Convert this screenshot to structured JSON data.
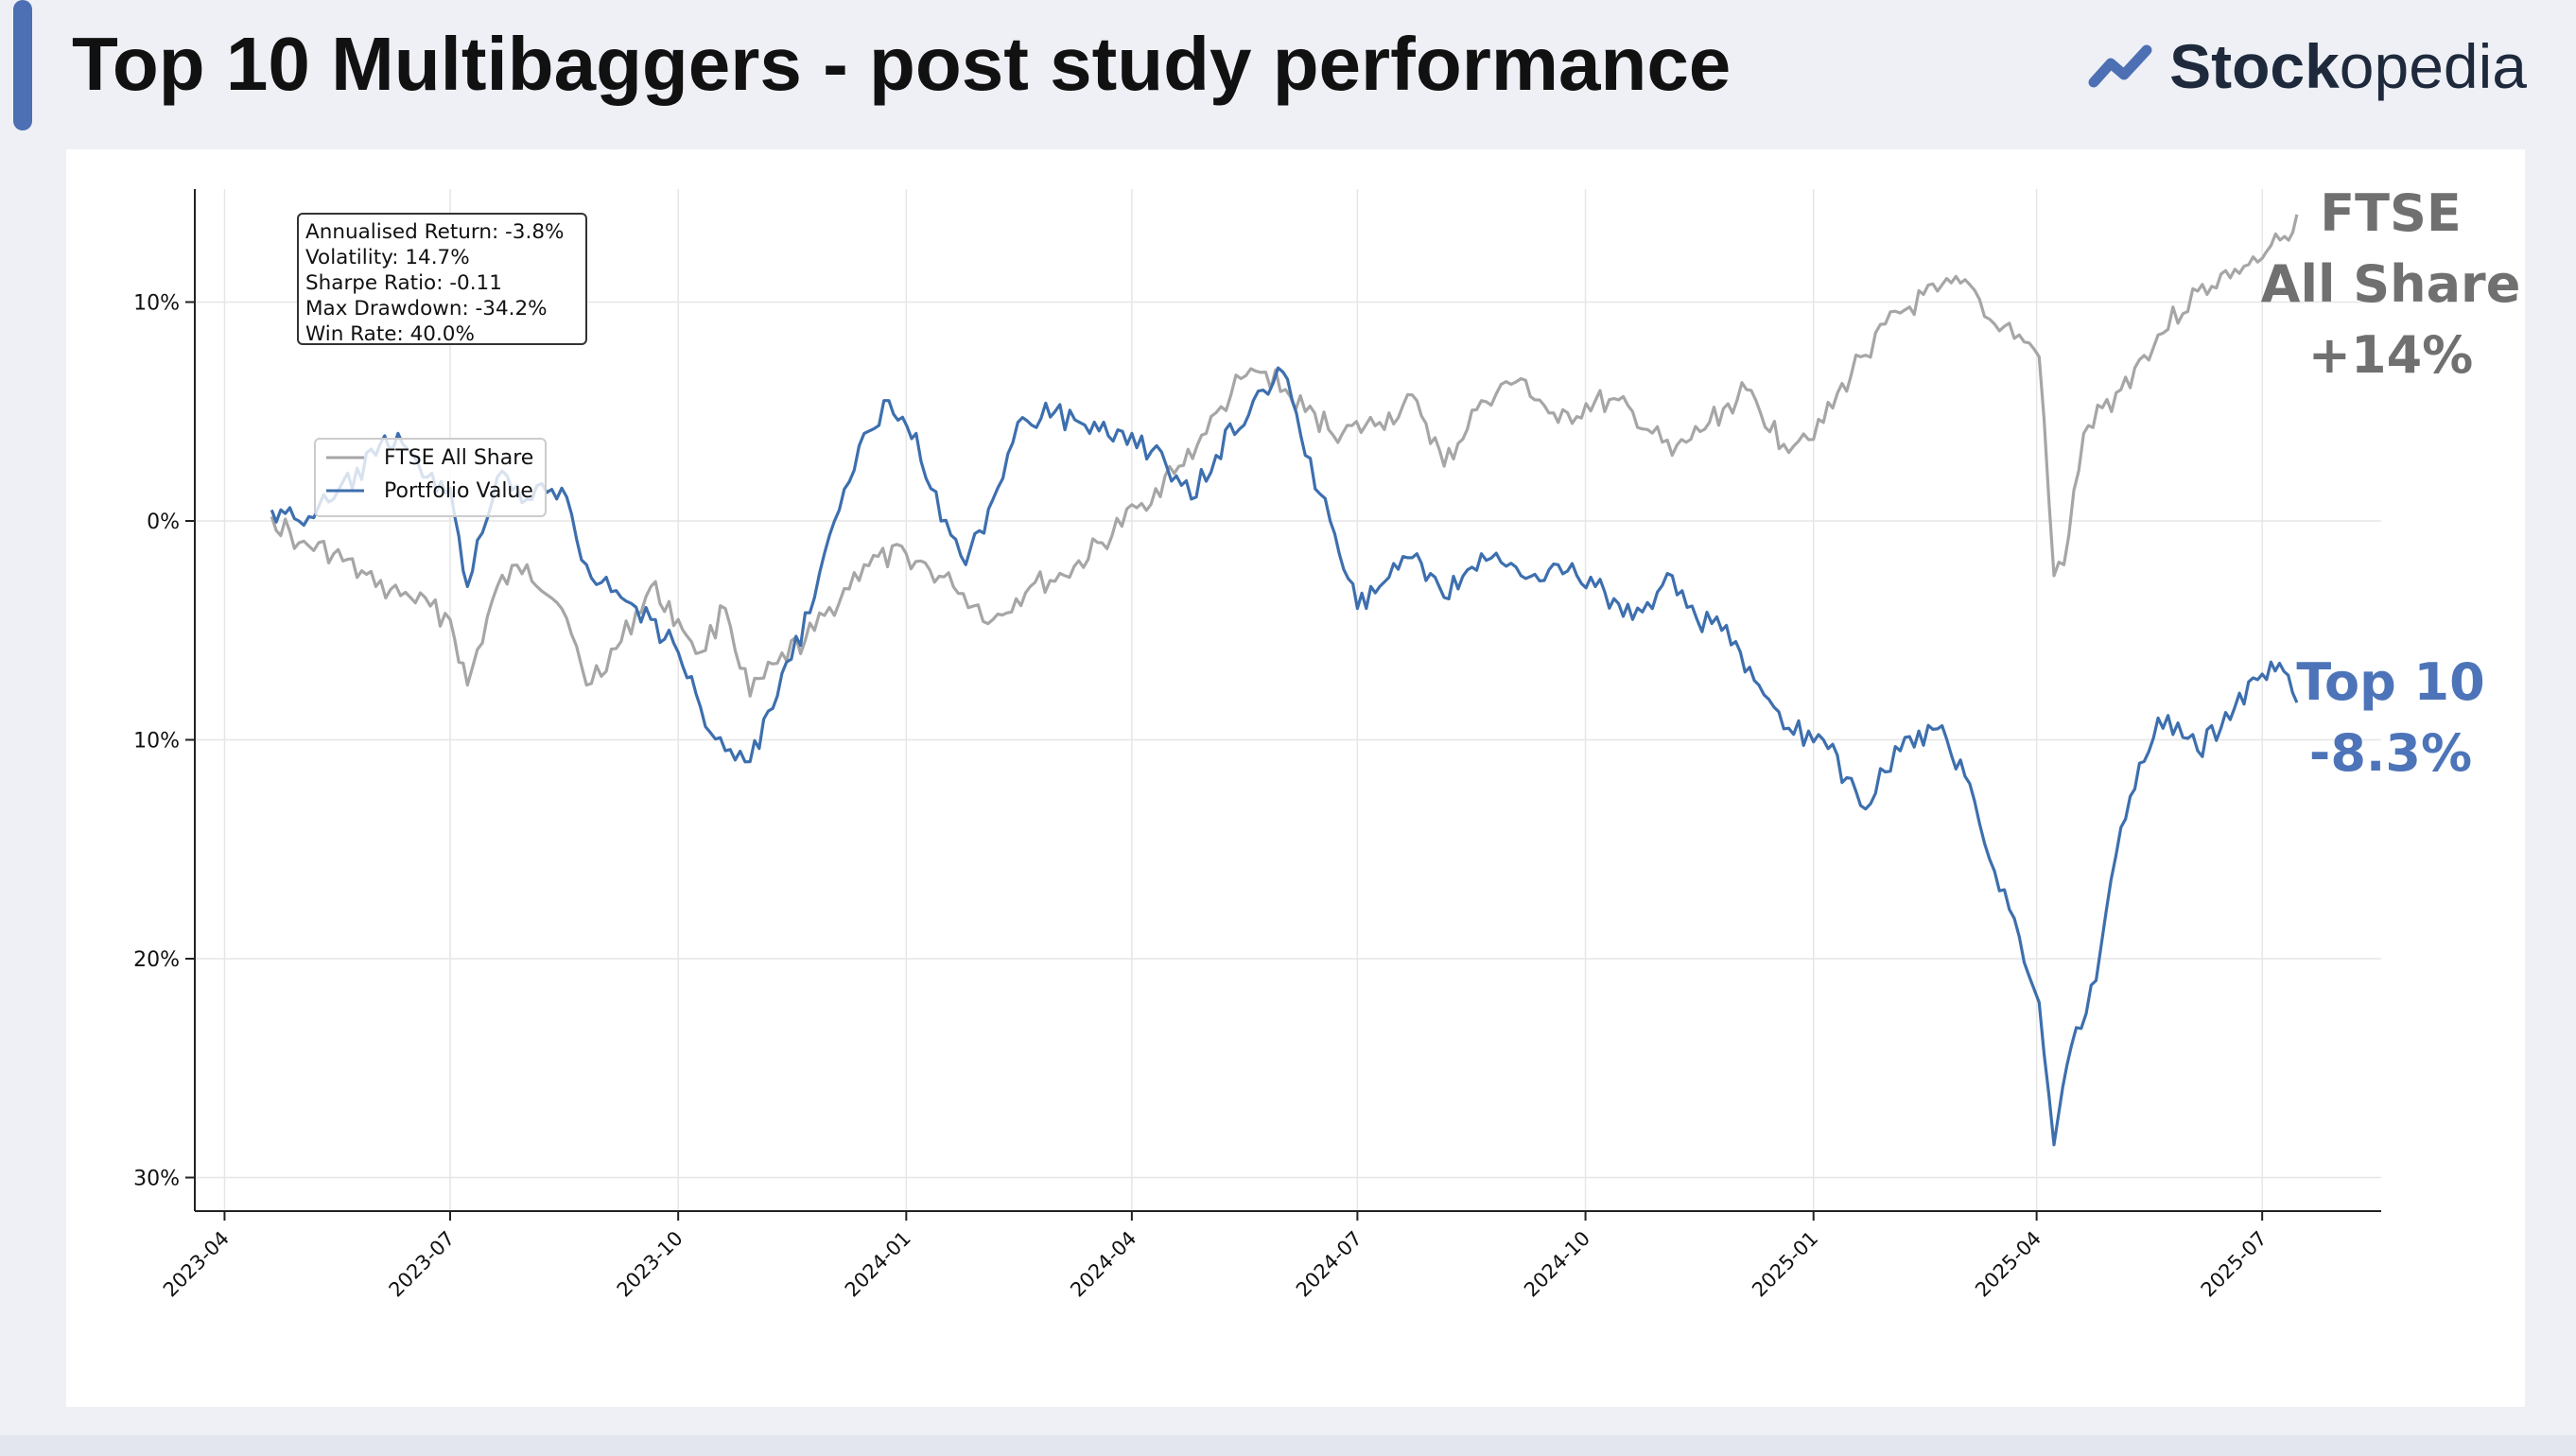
{
  "header": {
    "title": "Top 10 Multibaggers - post study performance",
    "brand_bold": "Stock",
    "brand_light": "opedia"
  },
  "colors": {
    "ftse": "#a6a6a6",
    "portfolio": "#3d6fae",
    "ftse_label": "#707070",
    "top10_label": "#4d74b8",
    "accent": "#4d6fb3"
  },
  "chart_data": {
    "type": "line",
    "title": "",
    "xlabel": "",
    "ylabel": "",
    "ylim": [
      -30,
      14
    ],
    "xlim": [
      "2023-03-20",
      "2025-08-18"
    ],
    "grid": true,
    "legend_position": "upper-left",
    "x_ticks": [
      "2023-04",
      "2023-07",
      "2023-10",
      "2024-01",
      "2024-04",
      "2024-07",
      "2024-10",
      "2025-01",
      "2025-04",
      "2025-07"
    ],
    "y_ticks": [
      {
        "value": 10,
        "label": "10%"
      },
      {
        "value": 0,
        "label": "0%"
      },
      {
        "value": -10,
        "label": "10%"
      },
      {
        "value": -20,
        "label": "20%"
      },
      {
        "value": -30,
        "label": "30%"
      }
    ],
    "stats": [
      "Annualised Return: -3.8%",
      "Volatility: 14.7%",
      "Sharpe Ratio: -0.11",
      "Max Drawdown: -34.2%",
      "Win Rate: 40.0%"
    ],
    "series": [
      {
        "name": "FTSE All Share",
        "points": [
          [
            "2023-04-20",
            0.2
          ],
          [
            "2023-05-01",
            -1.0
          ],
          [
            "2023-05-15",
            -1.5
          ],
          [
            "2023-06-01",
            -3.0
          ],
          [
            "2023-06-15",
            -3.5
          ],
          [
            "2023-07-01",
            -4.5
          ],
          [
            "2023-07-08",
            -7.5
          ],
          [
            "2023-07-20",
            -3.0
          ],
          [
            "2023-08-01",
            -2.0
          ],
          [
            "2023-08-15",
            -4.0
          ],
          [
            "2023-08-25",
            -7.5
          ],
          [
            "2023-09-08",
            -5.5
          ],
          [
            "2023-09-20",
            -3.0
          ],
          [
            "2023-10-01",
            -4.5
          ],
          [
            "2023-10-10",
            -6.0
          ],
          [
            "2023-10-20",
            -4.0
          ],
          [
            "2023-10-30",
            -8.0
          ],
          [
            "2023-11-10",
            -6.5
          ],
          [
            "2023-11-25",
            -5.0
          ],
          [
            "2023-12-15",
            -2.0
          ],
          [
            "2024-01-01",
            -1.5
          ],
          [
            "2024-01-20",
            -3.0
          ],
          [
            "2024-02-05",
            -4.5
          ],
          [
            "2024-02-20",
            -3.0
          ],
          [
            "2024-03-05",
            -2.5
          ],
          [
            "2024-03-20",
            -1.0
          ],
          [
            "2024-04-05",
            0.8
          ],
          [
            "2024-04-20",
            2.5
          ],
          [
            "2024-05-01",
            4.0
          ],
          [
            "2024-05-15",
            6.5
          ],
          [
            "2024-05-25",
            6.8
          ],
          [
            "2024-06-10",
            5.0
          ],
          [
            "2024-06-25",
            4.0
          ],
          [
            "2024-07-10",
            4.5
          ],
          [
            "2024-07-25",
            5.5
          ],
          [
            "2024-08-05",
            2.5
          ],
          [
            "2024-08-20",
            5.5
          ],
          [
            "2024-09-05",
            6.5
          ],
          [
            "2024-09-20",
            4.5
          ],
          [
            "2024-10-05",
            5.5
          ],
          [
            "2024-10-20",
            5.0
          ],
          [
            "2024-11-05",
            3.0
          ],
          [
            "2024-11-20",
            4.5
          ],
          [
            "2024-12-05",
            6.0
          ],
          [
            "2024-12-20",
            3.5
          ],
          [
            "2025-01-05",
            4.5
          ],
          [
            "2025-01-20",
            7.5
          ],
          [
            "2025-02-05",
            9.5
          ],
          [
            "2025-02-20",
            10.5
          ],
          [
            "2025-03-05",
            10.8
          ],
          [
            "2025-03-15",
            9.0
          ],
          [
            "2025-03-25",
            8.5
          ],
          [
            "2025-04-02",
            7.5
          ],
          [
            "2025-04-08",
            -2.5
          ],
          [
            "2025-04-12",
            -2.0
          ],
          [
            "2025-04-20",
            4.0
          ],
          [
            "2025-05-05",
            6.0
          ],
          [
            "2025-05-20",
            8.5
          ],
          [
            "2025-06-05",
            10.5
          ],
          [
            "2025-06-20",
            11.5
          ],
          [
            "2025-07-01",
            12.0
          ],
          [
            "2025-07-10",
            13.0
          ],
          [
            "2025-07-15",
            14.0
          ]
        ]
      },
      {
        "name": "Portfolio Value",
        "points": [
          [
            "2023-04-20",
            0.5
          ],
          [
            "2023-05-01",
            0.0
          ],
          [
            "2023-05-15",
            1.0
          ],
          [
            "2023-06-01",
            3.0
          ],
          [
            "2023-06-10",
            4.0
          ],
          [
            "2023-06-20",
            2.0
          ],
          [
            "2023-07-01",
            1.5
          ],
          [
            "2023-07-08",
            -3.0
          ],
          [
            "2023-07-20",
            2.0
          ],
          [
            "2023-08-01",
            1.0
          ],
          [
            "2023-08-15",
            1.5
          ],
          [
            "2023-08-25",
            -2.0
          ],
          [
            "2023-09-08",
            -3.5
          ],
          [
            "2023-09-20",
            -4.5
          ],
          [
            "2023-10-01",
            -6.0
          ],
          [
            "2023-10-10",
            -8.5
          ],
          [
            "2023-10-20",
            -10.5
          ],
          [
            "2023-10-30",
            -11.0
          ],
          [
            "2023-11-10",
            -8.0
          ],
          [
            "2023-11-25",
            -3.5
          ],
          [
            "2023-12-05",
            0.5
          ],
          [
            "2023-12-15",
            4.0
          ],
          [
            "2023-12-25",
            5.5
          ],
          [
            "2024-01-05",
            4.0
          ],
          [
            "2024-01-15",
            0.0
          ],
          [
            "2024-01-25",
            -2.0
          ],
          [
            "2024-02-05",
            1.0
          ],
          [
            "2024-02-15",
            4.5
          ],
          [
            "2024-03-01",
            5.0
          ],
          [
            "2024-03-15",
            4.0
          ],
          [
            "2024-04-01",
            4.0
          ],
          [
            "2024-04-15",
            2.5
          ],
          [
            "2024-04-25",
            1.0
          ],
          [
            "2024-05-05",
            3.0
          ],
          [
            "2024-05-20",
            5.5
          ],
          [
            "2024-06-01",
            6.8
          ],
          [
            "2024-06-10",
            3.0
          ],
          [
            "2024-06-20",
            0.0
          ],
          [
            "2024-07-01",
            -4.0
          ],
          [
            "2024-07-10",
            -3.0
          ],
          [
            "2024-07-25",
            -1.5
          ],
          [
            "2024-08-05",
            -3.5
          ],
          [
            "2024-08-20",
            -1.5
          ],
          [
            "2024-09-05",
            -2.5
          ],
          [
            "2024-09-20",
            -2.0
          ],
          [
            "2024-10-05",
            -3.0
          ],
          [
            "2024-10-20",
            -4.5
          ],
          [
            "2024-11-05",
            -2.5
          ],
          [
            "2024-11-15",
            -4.5
          ],
          [
            "2024-11-25",
            -5.0
          ],
          [
            "2024-12-10",
            -7.5
          ],
          [
            "2024-12-20",
            -9.5
          ],
          [
            "2025-01-05",
            -10.0
          ],
          [
            "2025-01-20",
            -13.0
          ],
          [
            "2025-02-05",
            -10.5
          ],
          [
            "2025-02-20",
            -9.5
          ],
          [
            "2025-03-05",
            -12.0
          ],
          [
            "2025-03-15",
            -16.0
          ],
          [
            "2025-03-25",
            -19.0
          ],
          [
            "2025-04-02",
            -22.0
          ],
          [
            "2025-04-08",
            -28.5
          ],
          [
            "2025-04-15",
            -24.0
          ],
          [
            "2025-04-25",
            -21.0
          ],
          [
            "2025-05-05",
            -14.0
          ],
          [
            "2025-05-20",
            -9.0
          ],
          [
            "2025-06-05",
            -10.5
          ],
          [
            "2025-06-20",
            -8.5
          ],
          [
            "2025-07-01",
            -7.0
          ],
          [
            "2025-07-08",
            -6.5
          ],
          [
            "2025-07-15",
            -8.3
          ]
        ]
      }
    ]
  },
  "end_labels": {
    "ftse": [
      "FTSE",
      "All Share",
      "+14%"
    ],
    "top10": [
      "Top 10",
      "-8.3%"
    ]
  }
}
